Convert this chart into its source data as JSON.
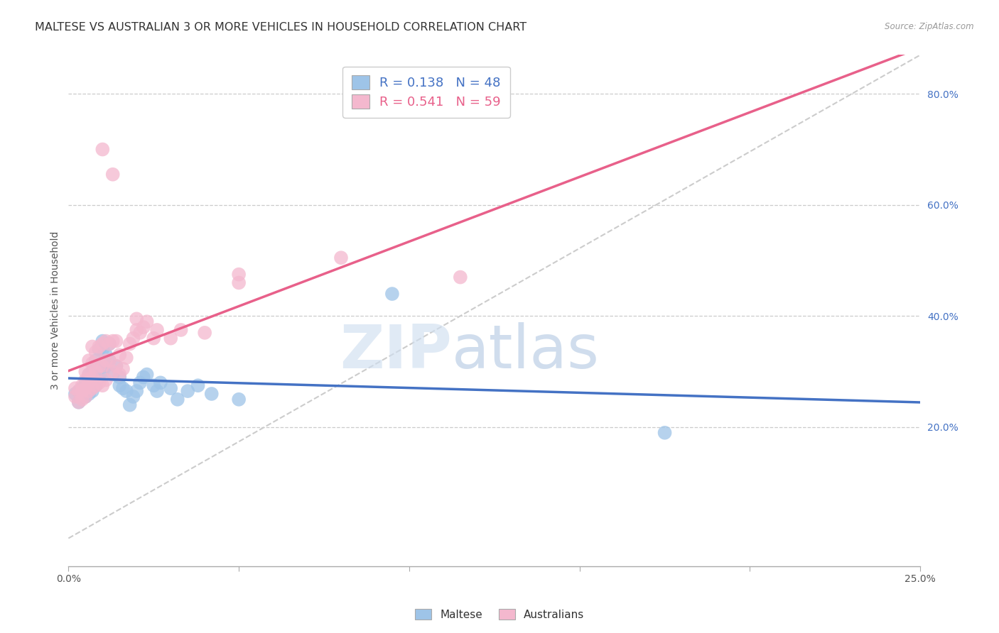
{
  "title": "MALTESE VS AUSTRALIAN 3 OR MORE VEHICLES IN HOUSEHOLD CORRELATION CHART",
  "source": "Source: ZipAtlas.com",
  "ylabel_label": "3 or more Vehicles in Household",
  "watermark_zip": "ZIP",
  "watermark_atlas": "atlas",
  "x_min": 0.0,
  "x_max": 0.25,
  "y_min": -0.05,
  "y_max": 0.87,
  "x_ticks": [
    0.0,
    0.05,
    0.1,
    0.15,
    0.2,
    0.25
  ],
  "x_tick_labels": [
    "0.0%",
    "",
    "",
    "",
    "",
    "25.0%"
  ],
  "y_ticks_right": [
    0.2,
    0.4,
    0.6,
    0.8
  ],
  "y_tick_labels_right": [
    "20.0%",
    "40.0%",
    "60.0%",
    "80.0%"
  ],
  "maltese_color": "#9ec4e8",
  "australian_color": "#f4b8ce",
  "maltese_line_color": "#4472c4",
  "australian_line_color": "#e8608a",
  "diag_line_color": "#cccccc",
  "legend_labels": [
    "Maltese",
    "Australians"
  ],
  "maltese_scatter": [
    [
      0.002,
      0.26
    ],
    [
      0.003,
      0.265
    ],
    [
      0.003,
      0.245
    ],
    [
      0.004,
      0.26
    ],
    [
      0.004,
      0.27
    ],
    [
      0.005,
      0.255
    ],
    [
      0.005,
      0.27
    ],
    [
      0.005,
      0.28
    ],
    [
      0.006,
      0.26
    ],
    [
      0.006,
      0.275
    ],
    [
      0.006,
      0.295
    ],
    [
      0.007,
      0.265
    ],
    [
      0.007,
      0.28
    ],
    [
      0.007,
      0.3
    ],
    [
      0.008,
      0.275
    ],
    [
      0.008,
      0.32
    ],
    [
      0.009,
      0.29
    ],
    [
      0.009,
      0.34
    ],
    [
      0.01,
      0.3
    ],
    [
      0.01,
      0.34
    ],
    [
      0.01,
      0.355
    ],
    [
      0.011,
      0.31
    ],
    [
      0.011,
      0.33
    ],
    [
      0.012,
      0.32
    ],
    [
      0.012,
      0.35
    ],
    [
      0.013,
      0.295
    ],
    [
      0.014,
      0.31
    ],
    [
      0.015,
      0.275
    ],
    [
      0.015,
      0.29
    ],
    [
      0.016,
      0.27
    ],
    [
      0.017,
      0.265
    ],
    [
      0.018,
      0.24
    ],
    [
      0.019,
      0.255
    ],
    [
      0.02,
      0.265
    ],
    [
      0.021,
      0.28
    ],
    [
      0.022,
      0.29
    ],
    [
      0.023,
      0.295
    ],
    [
      0.025,
      0.275
    ],
    [
      0.026,
      0.265
    ],
    [
      0.027,
      0.28
    ],
    [
      0.03,
      0.27
    ],
    [
      0.032,
      0.25
    ],
    [
      0.035,
      0.265
    ],
    [
      0.038,
      0.275
    ],
    [
      0.042,
      0.26
    ],
    [
      0.05,
      0.25
    ],
    [
      0.095,
      0.44
    ],
    [
      0.175,
      0.19
    ]
  ],
  "australian_scatter": [
    [
      0.002,
      0.255
    ],
    [
      0.002,
      0.27
    ],
    [
      0.003,
      0.245
    ],
    [
      0.003,
      0.265
    ],
    [
      0.004,
      0.25
    ],
    [
      0.004,
      0.265
    ],
    [
      0.004,
      0.275
    ],
    [
      0.005,
      0.255
    ],
    [
      0.005,
      0.27
    ],
    [
      0.005,
      0.285
    ],
    [
      0.005,
      0.3
    ],
    [
      0.006,
      0.265
    ],
    [
      0.006,
      0.28
    ],
    [
      0.006,
      0.295
    ],
    [
      0.006,
      0.32
    ],
    [
      0.007,
      0.27
    ],
    [
      0.007,
      0.29
    ],
    [
      0.007,
      0.315
    ],
    [
      0.007,
      0.345
    ],
    [
      0.008,
      0.275
    ],
    [
      0.008,
      0.3
    ],
    [
      0.008,
      0.335
    ],
    [
      0.009,
      0.28
    ],
    [
      0.009,
      0.31
    ],
    [
      0.009,
      0.345
    ],
    [
      0.01,
      0.275
    ],
    [
      0.01,
      0.31
    ],
    [
      0.01,
      0.35
    ],
    [
      0.011,
      0.285
    ],
    [
      0.011,
      0.32
    ],
    [
      0.011,
      0.355
    ],
    [
      0.012,
      0.32
    ],
    [
      0.012,
      0.35
    ],
    [
      0.013,
      0.3
    ],
    [
      0.013,
      0.355
    ],
    [
      0.014,
      0.31
    ],
    [
      0.014,
      0.355
    ],
    [
      0.015,
      0.295
    ],
    [
      0.015,
      0.33
    ],
    [
      0.016,
      0.305
    ],
    [
      0.017,
      0.325
    ],
    [
      0.018,
      0.35
    ],
    [
      0.019,
      0.36
    ],
    [
      0.02,
      0.375
    ],
    [
      0.02,
      0.395
    ],
    [
      0.021,
      0.37
    ],
    [
      0.022,
      0.38
    ],
    [
      0.023,
      0.39
    ],
    [
      0.025,
      0.36
    ],
    [
      0.026,
      0.375
    ],
    [
      0.03,
      0.36
    ],
    [
      0.033,
      0.375
    ],
    [
      0.04,
      0.37
    ],
    [
      0.05,
      0.46
    ],
    [
      0.05,
      0.475
    ],
    [
      0.08,
      0.505
    ],
    [
      0.01,
      0.7
    ],
    [
      0.013,
      0.655
    ],
    [
      0.115,
      0.47
    ]
  ],
  "bg_color": "#ffffff",
  "grid_color": "#cccccc",
  "title_fontsize": 11.5,
  "label_fontsize": 10,
  "tick_fontsize": 10
}
